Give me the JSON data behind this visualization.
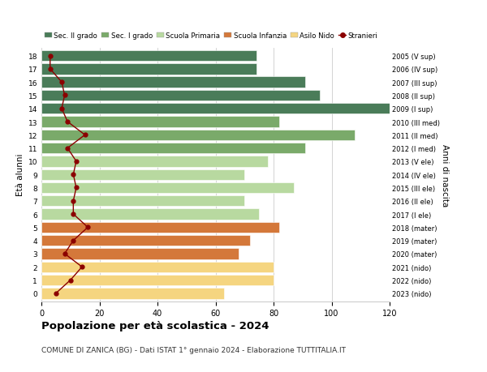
{
  "ages": [
    18,
    17,
    16,
    15,
    14,
    13,
    12,
    11,
    10,
    9,
    8,
    7,
    6,
    5,
    4,
    3,
    2,
    1,
    0
  ],
  "right_labels": [
    "2005 (V sup)",
    "2006 (IV sup)",
    "2007 (III sup)",
    "2008 (II sup)",
    "2009 (I sup)",
    "2010 (III med)",
    "2011 (II med)",
    "2012 (I med)",
    "2013 (V ele)",
    "2014 (IV ele)",
    "2015 (III ele)",
    "2016 (II ele)",
    "2017 (I ele)",
    "2018 (mater)",
    "2019 (mater)",
    "2020 (mater)",
    "2021 (nido)",
    "2022 (nido)",
    "2023 (nido)"
  ],
  "bar_values": [
    74,
    74,
    91,
    96,
    122,
    82,
    108,
    91,
    78,
    70,
    87,
    70,
    75,
    82,
    72,
    68,
    80,
    80,
    63
  ],
  "bar_colors": [
    "#4a7c59",
    "#4a7c59",
    "#4a7c59",
    "#4a7c59",
    "#4a7c59",
    "#7aaa6a",
    "#7aaa6a",
    "#7aaa6a",
    "#b8d9a0",
    "#b8d9a0",
    "#b8d9a0",
    "#b8d9a0",
    "#b8d9a0",
    "#d4783a",
    "#d4783a",
    "#d4783a",
    "#f5d580",
    "#f5d580",
    "#f5d580"
  ],
  "stranieri_values": [
    3,
    3,
    7,
    8,
    7,
    9,
    15,
    9,
    12,
    11,
    12,
    11,
    11,
    16,
    11,
    8,
    14,
    10,
    5
  ],
  "legend_labels": [
    "Sec. II grado",
    "Sec. I grado",
    "Scuola Primaria",
    "Scuola Infanzia",
    "Asilo Nido",
    "Stranieri"
  ],
  "legend_colors": [
    "#4a7c59",
    "#7aaa6a",
    "#b8d9a0",
    "#d4783a",
    "#f5d580",
    "#b22222"
  ],
  "ylabel": "Età alunni",
  "right_ylabel": "Anni di nascita",
  "title": "Popolazione per età scolastica - 2024",
  "subtitle": "COMUNE DI ZANICA (BG) - Dati ISTAT 1° gennaio 2024 - Elaborazione TUTTITALIA.IT",
  "xlim": [
    0,
    120
  ],
  "xticks": [
    0,
    20,
    40,
    60,
    80,
    100,
    120
  ],
  "background_color": "#ffffff",
  "grid_color": "#cccccc",
  "bar_height": 0.82,
  "stranieri_line_color": "#8b0000",
  "stranieri_marker_color": "#8b0000"
}
